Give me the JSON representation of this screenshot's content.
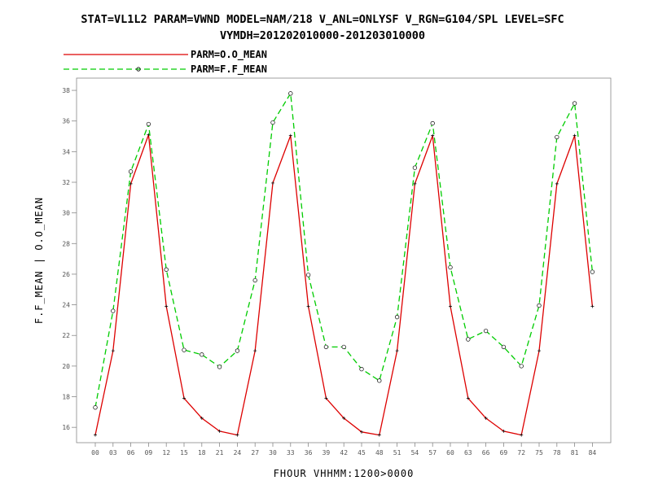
{
  "title": {
    "line1": "STAT=VL1L2 PARAM=VWND MODEL=NAM/218 V_ANL=ONLYSF V_RGN=G104/SPL LEVEL=SFC",
    "line2": "VYMDH=201202010000-201203010000"
  },
  "chart_data": {
    "type": "line",
    "xlabel": "FHOUR VHHMM:1200>0000",
    "ylabel": "F.F_MEAN | O.O_MEAN",
    "categories": [
      "00",
      "03",
      "06",
      "09",
      "12",
      "15",
      "18",
      "21",
      "24",
      "27",
      "30",
      "33",
      "36",
      "39",
      "42",
      "45",
      "48",
      "51",
      "54",
      "57",
      "60",
      "63",
      "66",
      "69",
      "72",
      "75",
      "78",
      "81",
      "84"
    ],
    "ylim": [
      15,
      38.8
    ],
    "yticks": [
      16,
      18,
      20,
      22,
      24,
      26,
      28,
      30,
      32,
      34,
      36,
      38
    ],
    "grid": false,
    "legend": "top-left",
    "series": [
      {
        "name": "PARM=O.O_MEAN",
        "color": "#dd0000",
        "dash": "solid",
        "marker": "plus",
        "values": [
          15.5,
          21.0,
          31.9,
          35.1,
          23.9,
          17.9,
          16.6,
          15.75,
          15.5,
          21.0,
          31.95,
          35.05,
          23.9,
          17.9,
          16.6,
          15.7,
          15.5,
          21.0,
          31.9,
          35.05,
          23.9,
          17.9,
          16.6,
          15.75,
          15.5,
          21.0,
          31.9,
          35.05,
          23.9
        ]
      },
      {
        "name": "PARM=F.F_MEAN",
        "color": "#00cc00",
        "dash": "dashed",
        "marker": "circle",
        "values": [
          17.3,
          23.6,
          32.7,
          35.8,
          26.3,
          21.05,
          20.75,
          19.95,
          21.0,
          25.6,
          35.9,
          37.8,
          25.95,
          21.25,
          21.25,
          19.8,
          19.05,
          23.2,
          32.95,
          35.85,
          26.45,
          21.75,
          22.3,
          21.25,
          20.0,
          23.95,
          34.95,
          37.15,
          26.15
        ]
      }
    ]
  }
}
